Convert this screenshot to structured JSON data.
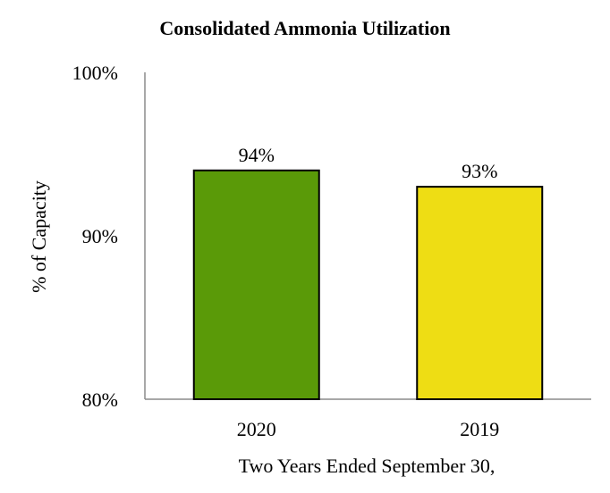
{
  "chart_data": {
    "type": "bar",
    "title": "Consolidated Ammonia Utilization",
    "xlabel": "Two Years Ended September 30,",
    "ylabel": "% of Capacity",
    "categories": [
      "2020",
      "2019"
    ],
    "values": [
      94,
      93
    ],
    "data_labels": [
      "94%",
      "93%"
    ],
    "bar_colors": [
      "#5a9a08",
      "#eedd14"
    ],
    "ylim": [
      80,
      100
    ],
    "yticks": [
      80,
      90,
      100
    ],
    "ytick_labels": [
      "80%",
      "90%",
      "100%"
    ],
    "grid": false,
    "legend": "none"
  }
}
